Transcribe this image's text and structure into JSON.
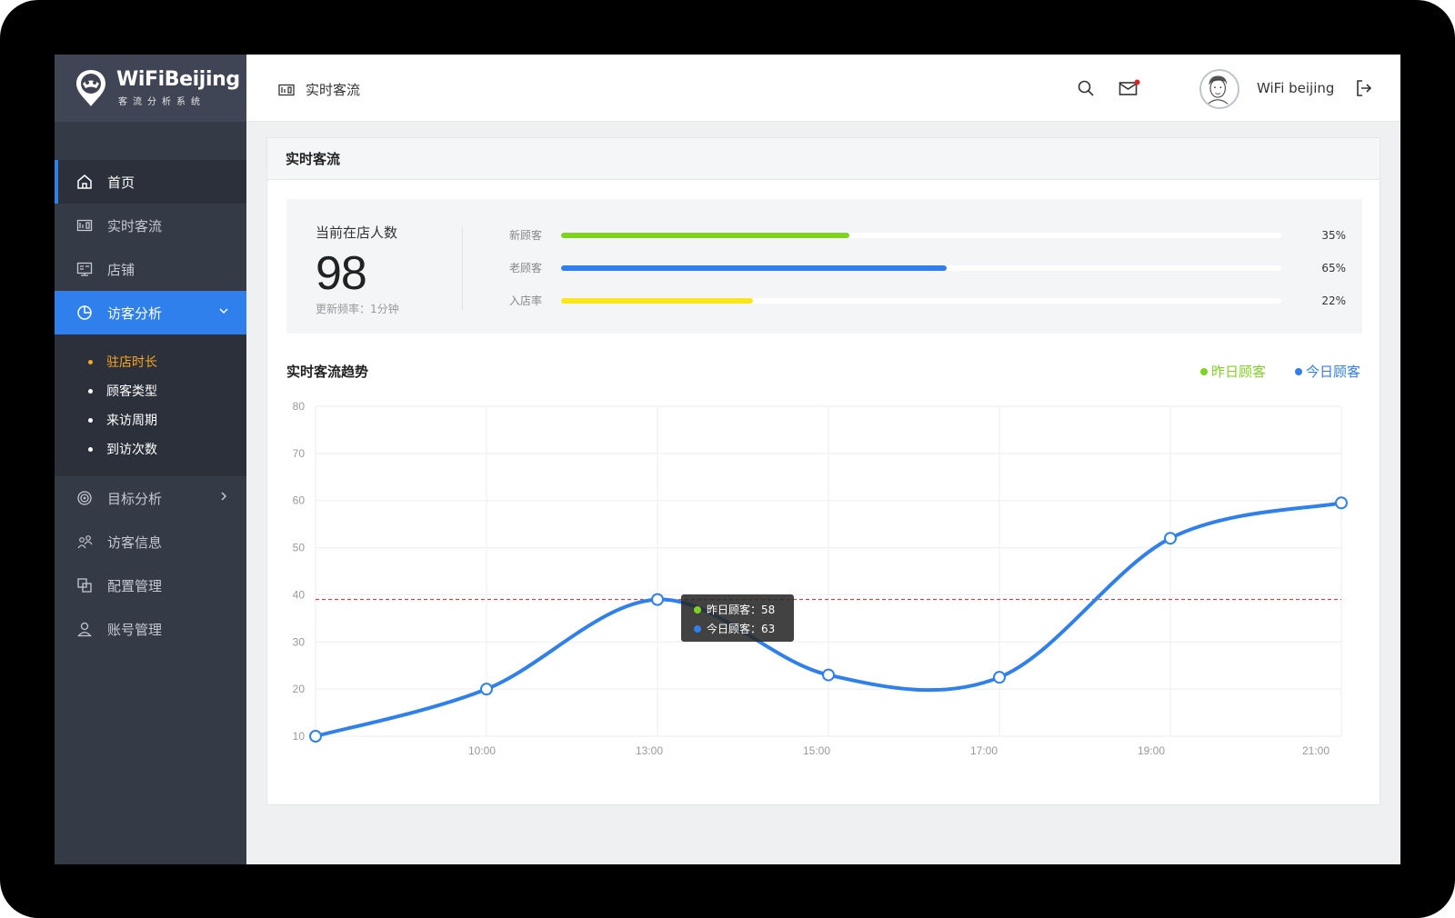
{
  "app": {
    "logo_title": "WiFiBeijing",
    "logo_subtitle": "客流分析系统"
  },
  "sidebar": {
    "items": [
      {
        "label": "首页",
        "icon": "home-icon"
      },
      {
        "label": "实时客流",
        "icon": "realtime-icon"
      },
      {
        "label": "店铺",
        "icon": "store-icon"
      },
      {
        "label": "访客分析",
        "icon": "pie-chart-icon"
      },
      {
        "label": "目标分析",
        "icon": "target-icon"
      },
      {
        "label": "访客信息",
        "icon": "visitors-icon"
      },
      {
        "label": "配置管理",
        "icon": "config-icon"
      },
      {
        "label": "账号管理",
        "icon": "user-icon"
      }
    ],
    "sub_items": [
      "驻店时长",
      "顾客类型",
      "来访周期",
      "到访次数"
    ]
  },
  "topbar": {
    "breadcrumb": "实时客流",
    "username": "WiFi beijing"
  },
  "card": {
    "title": "实时客流",
    "current_label": "当前在店人数",
    "current_value": "98",
    "update_freq": "更新频率：1分钟",
    "bars": [
      {
        "label": "新顾客",
        "value": "35%",
        "fraction": 0.4,
        "color": "#7ed321"
      },
      {
        "label": "老顾客",
        "value": "65%",
        "fraction": 0.535,
        "color": "#2f80ed"
      },
      {
        "label": "入店率",
        "value": "22%",
        "fraction": 0.267,
        "color": "#f8e71c"
      }
    ],
    "trend_title": "实时客流趋势",
    "legend": {
      "yesterday": "昨日顾客",
      "today": "今日顾客"
    },
    "tooltip": {
      "yesterday": "昨日顾客：58",
      "today": "今日顾客：63"
    }
  },
  "colors": {
    "accent": "#2f80ed",
    "yesterday": "#7ed321",
    "today": "#2f80ed",
    "sub_active": "#f5a623",
    "reference_line": "#e02020"
  },
  "chart_data": {
    "type": "line",
    "x_ticks": [
      "10:00",
      "13:00",
      "15:00",
      "17:00",
      "19:00",
      "21:00"
    ],
    "y_ticks": [
      10,
      20,
      30,
      40,
      50,
      60,
      70,
      80
    ],
    "ylim": [
      10,
      80
    ],
    "grid": true,
    "legend_position": "top-right",
    "series": [
      {
        "name": "今日顾客",
        "color": "#2f80ed",
        "points": [
          10,
          20,
          39,
          23,
          22.5,
          52,
          59.5
        ]
      }
    ],
    "reference_line": 39
  }
}
